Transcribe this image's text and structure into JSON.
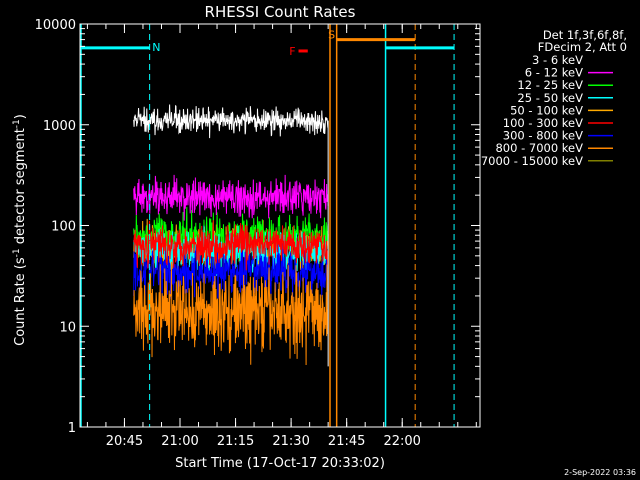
{
  "chart_data": {
    "type": "line",
    "title": "RHESSI Count Rates",
    "xlabel": "Start Time (17-Oct-17 20:33:02)",
    "ylabel_parts": [
      "Count Rate (s",
      "-1",
      " detector segment",
      "-1",
      ")"
    ],
    "yscale": "log",
    "ylim": [
      1,
      10000
    ],
    "xlim_minutes": [
      0,
      108.0
    ],
    "x_ticks": [
      {
        "label": "20:45",
        "minute": 12.0
      },
      {
        "label": "21:00",
        "minute": 27.0
      },
      {
        "label": "21:15",
        "minute": 42.0
      },
      {
        "label": "21:30",
        "minute": 57.0
      },
      {
        "label": "21:45",
        "minute": 72.0
      },
      {
        "label": "22:00",
        "minute": 87.0
      }
    ],
    "y_ticks": [
      {
        "label": "1",
        "value": 1
      },
      {
        "label": "10",
        "value": 10
      },
      {
        "label": "100",
        "value": 100
      },
      {
        "label": "1000",
        "value": 1000
      },
      {
        "label": "10000",
        "value": 10000
      }
    ],
    "legend": {
      "header": [
        "Det 1f,3f,6f,8f,",
        "FDecim 2, Att 0"
      ],
      "placement": "right"
    },
    "series": [
      {
        "name": "3 - 6 keV",
        "color": "#000000",
        "base": 1100,
        "spread": 0.06,
        "x_range": [
          14.5,
          67.0
        ]
      },
      {
        "name": "6 - 12 keV",
        "color": "#ff00ff",
        "base": 190,
        "spread": 0.09,
        "x_range": [
          14.5,
          67.0
        ]
      },
      {
        "name": "12 - 25 keV",
        "color": "#00ff00",
        "base": 80,
        "spread": 0.1,
        "x_range": [
          14.5,
          67.0
        ]
      },
      {
        "name": "25 - 50 keV",
        "color": "#00ffff",
        "base": 55,
        "spread": 0.1,
        "x_range": [
          14.5,
          67.0
        ]
      },
      {
        "name": "50 - 100 keV",
        "color": "#ffaa00",
        "base": 60,
        "spread": 0.1,
        "x_range": [
          14.5,
          67.0
        ]
      },
      {
        "name": "100 - 300 keV",
        "color": "#ff0000",
        "base": 65,
        "spread": 0.1,
        "x_range": [
          14.5,
          67.0
        ]
      },
      {
        "name": "300 - 800 keV",
        "color": "#0000ff",
        "base": 35,
        "spread": 0.12,
        "x_range": [
          14.5,
          67.0
        ]
      },
      {
        "name": "800 - 7000 keV",
        "color": "#ff8800",
        "base": 14,
        "spread": 0.2,
        "x_range": [
          14.5,
          67.0
        ]
      },
      {
        "name": "7000 - 15000 keV",
        "color": "#808000",
        "base": 0,
        "spread": 0,
        "x_range": []
      }
    ],
    "annotations": {
      "night_marker": {
        "label": "N",
        "color": "#00ffff",
        "y": 5800,
        "x_from": 0,
        "x_to": 18.8,
        "label_x": 19.5
      },
      "night_marker_2": {
        "color": "#00ffff",
        "y": 5800,
        "x_from": 82.5,
        "x_to": 101.0
      },
      "saa_marker": {
        "label": "S",
        "color": "#ff8800",
        "y": 7000,
        "x_from": 69.3,
        "x_to": 90.5,
        "label_x": 67.0
      },
      "flare_marker": {
        "label": "F",
        "color": "#ff0000",
        "y": 5400,
        "x_from": 59.0,
        "x_to": 61.5,
        "label_x": 56.5
      },
      "cyan_solid_lines": [
        0,
        82.5
      ],
      "cyan_dashed_lines": [
        18.8,
        101.0
      ],
      "orange_solid_lines": [
        67.5,
        69.3
      ],
      "orange_dashed_lines": [
        90.5
      ]
    }
  },
  "footer": {
    "timestamp": "2-Sep-2022 03:36"
  }
}
